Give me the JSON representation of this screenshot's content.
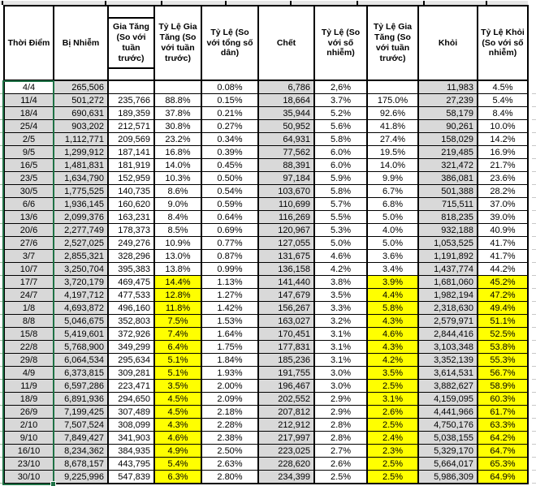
{
  "app": {
    "kind": "spreadsheet-table-screenshot"
  },
  "colors": {
    "cell_gray": "#d9d9d9",
    "highlight_yellow": "#ffff00",
    "selection_green": "#1e7145",
    "border_black": "#000000"
  },
  "selection": {
    "range": "date-column",
    "active_cell": "4/4",
    "has_fill_handle": true
  },
  "table": {
    "headers": [
      "Thời Điểm",
      "Bị Nhiễm",
      "Gia Tăng (So với tuần trước)",
      "Tỷ Lệ Gia Tăng (So với tuần trước)",
      "Tỷ Lệ (So với tổng số dân)",
      "Chết",
      "Tỷ Lệ (So với số nhiễm)",
      "Tỷ Lệ Gia Tăng (So với tuần trước)",
      "Khỏi",
      "Tỷ Lệ Khỏi (So với số nhiễm)"
    ],
    "rows": [
      {
        "highlight": false,
        "cells": [
          "4/4",
          "265,506",
          "",
          "",
          "0.08%",
          "6,786",
          "2,6%",
          "",
          "11,983",
          "4.5%"
        ]
      },
      {
        "highlight": false,
        "cells": [
          "11/4",
          "501,272",
          "235,766",
          "88.8%",
          "0.15%",
          "18,664",
          "3.7%",
          "175.0%",
          "27,239",
          "5.4%"
        ]
      },
      {
        "highlight": false,
        "cells": [
          "18/4",
          "690,631",
          "189,359",
          "37.8%",
          "0.21%",
          "35,944",
          "5.2%",
          "92.6%",
          "58,179",
          "8.4%"
        ]
      },
      {
        "highlight": false,
        "cells": [
          "25/4",
          "903,202",
          "212,571",
          "30.8%",
          "0.27%",
          "50,952",
          "5.6%",
          "41.8%",
          "90,261",
          "10.0%"
        ]
      },
      {
        "highlight": false,
        "cells": [
          "2/5",
          "1,112,771",
          "209,569",
          "23.2%",
          "0.34%",
          "64,931",
          "5.8%",
          "27.4%",
          "158,029",
          "14.2%"
        ]
      },
      {
        "highlight": false,
        "cells": [
          "9/5",
          "1,299,912",
          "187,141",
          "16.8%",
          "0.39%",
          "77,562",
          "6.0%",
          "19.5%",
          "219,485",
          "16.9%"
        ]
      },
      {
        "highlight": false,
        "cells": [
          "16/5",
          "1,481,831",
          "181,919",
          "14.0%",
          "0.45%",
          "88,391",
          "6.0%",
          "14.0%",
          "321,472",
          "21.7%"
        ]
      },
      {
        "highlight": false,
        "cells": [
          "23/5",
          "1,634,790",
          "152,959",
          "10.3%",
          "0.50%",
          "97,184",
          "5.9%",
          "9.9%",
          "386,081",
          "23.6%"
        ]
      },
      {
        "highlight": false,
        "cells": [
          "30/5",
          "1,775,525",
          "140,735",
          "8.6%",
          "0.54%",
          "103,670",
          "5.8%",
          "6.7%",
          "501,388",
          "28.2%"
        ]
      },
      {
        "highlight": false,
        "cells": [
          "6/6",
          "1,936,145",
          "160,620",
          "9.0%",
          "0.59%",
          "110,699",
          "5.7%",
          "6.8%",
          "715,511",
          "37.0%"
        ]
      },
      {
        "highlight": false,
        "cells": [
          "13/6",
          "2,099,376",
          "163,231",
          "8.4%",
          "0.64%",
          "116,269",
          "5.5%",
          "5.0%",
          "818,235",
          "39.0%"
        ]
      },
      {
        "highlight": false,
        "cells": [
          "20/6",
          "2,277,749",
          "178,373",
          "8.5%",
          "0.69%",
          "120,967",
          "5.3%",
          "4.0%",
          "932,188",
          "40.9%"
        ]
      },
      {
        "highlight": false,
        "cells": [
          "27/6",
          "2,527,025",
          "249,276",
          "10.9%",
          "0.77%",
          "127,055",
          "5.0%",
          "5.0%",
          "1,053,525",
          "41.7%"
        ]
      },
      {
        "highlight": false,
        "cells": [
          "3/7",
          "2,855,321",
          "328,296",
          "13.0%",
          "0.87%",
          "131,675",
          "4.6%",
          "3.6%",
          "1,191,892",
          "41.7%"
        ]
      },
      {
        "highlight": false,
        "cells": [
          "10/7",
          "3,250,704",
          "395,383",
          "13.8%",
          "0.99%",
          "136,158",
          "4.2%",
          "3.4%",
          "1,437,774",
          "44.2%"
        ]
      },
      {
        "highlight": true,
        "cells": [
          "17/7",
          "3,720,179",
          "469,475",
          "14.4%",
          "1.13%",
          "141,440",
          "3.8%",
          "3.9%",
          "1,681,060",
          "45.2%"
        ]
      },
      {
        "highlight": true,
        "cells": [
          "24/7",
          "4,197,712",
          "477,533",
          "12.8%",
          "1.27%",
          "147,679",
          "3.5%",
          "4.4%",
          "1,982,194",
          "47.2%"
        ]
      },
      {
        "highlight": true,
        "cells": [
          "1/8",
          "4,693,872",
          "496,160",
          "11.8%",
          "1.42%",
          "156,267",
          "3.3%",
          "5.8%",
          "2,318,630",
          "49.4%"
        ]
      },
      {
        "highlight": true,
        "cells": [
          "8/8",
          "5,046,675",
          "352,803",
          "7.5%",
          "1.53%",
          "163,027",
          "3.2%",
          "4.3%",
          "2,579,971",
          "51.1%"
        ]
      },
      {
        "highlight": true,
        "cells": [
          "15/8",
          "5,419,601",
          "372,926",
          "7.4%",
          "1.64%",
          "170,451",
          "3.1%",
          "4.6%",
          "2,844,416",
          "52.5%"
        ]
      },
      {
        "highlight": true,
        "cells": [
          "22/8",
          "5,768,900",
          "349,299",
          "6.4%",
          "1.75%",
          "177,831",
          "3.1%",
          "4.3%",
          "3,103,348",
          "53.8%"
        ]
      },
      {
        "highlight": true,
        "cells": [
          "29/8",
          "6,064,534",
          "295,634",
          "5.1%",
          "1.84%",
          "185,236",
          "3.1%",
          "4.2%",
          "3,352,139",
          "55.3%"
        ]
      },
      {
        "highlight": true,
        "cells": [
          "4/9",
          "6,373,815",
          "309,281",
          "5.1%",
          "1.93%",
          "191,755",
          "3.0%",
          "3.5%",
          "3,614,531",
          "56.7%"
        ]
      },
      {
        "highlight": true,
        "cells": [
          "11/9",
          "6,597,286",
          "223,471",
          "3.5%",
          "2.00%",
          "196,467",
          "3.0%",
          "2.5%",
          "3,882,627",
          "58.9%"
        ]
      },
      {
        "highlight": true,
        "cells": [
          "18/9",
          "6,891,936",
          "294,650",
          "4.5%",
          "2.09%",
          "202,552",
          "2.9%",
          "3.1%",
          "4,159,095",
          "60.3%"
        ]
      },
      {
        "highlight": true,
        "cells": [
          "26/9",
          "7,199,425",
          "307,489",
          "4.5%",
          "2.18%",
          "207,812",
          "2.9%",
          "2.6%",
          "4,441,966",
          "61.7%"
        ]
      },
      {
        "highlight": true,
        "cells": [
          "2/10",
          "7,507,524",
          "308,099",
          "4.3%",
          "2.28%",
          "212,912",
          "2.8%",
          "2.5%",
          "4,750,176",
          "63.3%"
        ]
      },
      {
        "highlight": true,
        "cells": [
          "9/10",
          "7,849,427",
          "341,903",
          "4.6%",
          "2.38%",
          "217,997",
          "2.8%",
          "2.4%",
          "5,038,155",
          "64.2%"
        ]
      },
      {
        "highlight": true,
        "cells": [
          "16/10",
          "8,234,362",
          "384,935",
          "4.9%",
          "2.50%",
          "223,025",
          "2.7%",
          "2.3%",
          "5,329,170",
          "64.7%"
        ]
      },
      {
        "highlight": true,
        "cells": [
          "23/10",
          "8,678,157",
          "443,795",
          "5.4%",
          "2.63%",
          "228,620",
          "2.6%",
          "2.5%",
          "5,664,017",
          "65.3%"
        ]
      },
      {
        "highlight": true,
        "cells": [
          "30/10",
          "9,225,996",
          "547,839",
          "6.3%",
          "2.80%",
          "234,399",
          "2.5%",
          "2.5%",
          "5,986,309",
          "64.9%"
        ]
      }
    ]
  }
}
